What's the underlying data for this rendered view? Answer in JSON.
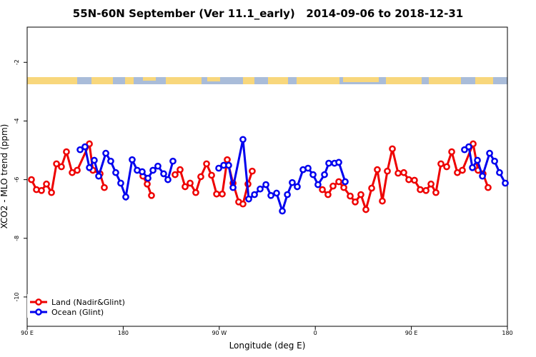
{
  "chart_data": {
    "type": "line",
    "title": "55N-60N September (Ver 11.1_early)   2014-09-06 to 2018-12-31",
    "xlabel": "Longitude (deg E)",
    "ylabel": "XCO2 - MLO trend (ppm)",
    "xlim": [
      90,
      540
    ],
    "ylim": [
      -11,
      -0.8
    ],
    "xticks": [
      {
        "value": 90,
        "label": "90 E"
      },
      {
        "value": 180,
        "label": "180"
      },
      {
        "value": 270,
        "label": "90 W"
      },
      {
        "value": 360,
        "label": "0"
      },
      {
        "value": 450,
        "label": "90 E"
      },
      {
        "value": 540,
        "label": "180"
      }
    ],
    "yticks": [
      -2,
      -4,
      -6,
      -8,
      -10
    ],
    "legend": "bottom-left",
    "series": [
      {
        "name": "Land (Nadir&Glint)",
        "color": "#ee0000",
        "x": [
          94,
          98.7,
          103.4,
          108.1,
          112.8,
          117.5,
          122.1,
          126.8,
          132.2,
          136.9,
          148.3,
          151.6,
          158.3,
          162.3,
          null,
          198.5,
          202.5,
          206.5,
          null,
          228.6,
          233.3,
          238,
          242.7,
          248,
          252.7,
          258.1,
          262.8,
          267.5,
          272.8,
          277.5,
          282.9,
          288.2,
          292.2,
          296.9,
          300.9,
          null,
          366.6,
          371.9,
          376.6,
          382,
          386.7,
          392.7,
          397.4,
          402.7,
          407.4,
          412.8,
          418.1,
          422.8,
          427.5,
          432.2,
          437.6,
          442.9,
          447.6,
          452.9,
          458.3,
          463.7,
          468.4,
          473,
          477.7,
          483.1,
          487.8,
          493.1,
          497.8,
          507.9,
          512.5,
          517.2,
          521.9
        ],
        "values": [
          -6.0,
          -6.34,
          -6.37,
          -6.15,
          -6.44,
          -5.46,
          -5.56,
          -5.05,
          -5.76,
          -5.68,
          -4.78,
          -5.68,
          -5.8,
          -6.27,
          null,
          -5.88,
          -6.15,
          -6.54,
          null,
          -5.83,
          -5.66,
          -6.24,
          -6.12,
          -6.44,
          -5.9,
          -5.46,
          -5.85,
          -6.49,
          -6.49,
          -5.32,
          -6.12,
          -6.76,
          -6.83,
          -6.15,
          -5.71,
          null,
          -6.34,
          -6.51,
          -6.22,
          -6.07,
          -6.27,
          -6.56,
          -6.76,
          -6.51,
          -7.02,
          -6.29,
          -5.66,
          -6.73,
          -5.71,
          -4.95,
          -5.78,
          -5.76,
          -6.0,
          -6.02,
          -6.34,
          -6.37,
          -6.15,
          -6.44,
          -5.46,
          -5.56,
          -5.05,
          -5.76,
          -5.68,
          -4.78,
          -5.68,
          -5.8,
          -6.27
        ]
      },
      {
        "name": "Ocean (Glint)",
        "color": "#0000ee",
        "x": [
          139.6,
          144.2,
          148.3,
          152.9,
          157,
          163.7,
          168.3,
          173,
          177.7,
          182.4,
          188.4,
          193.1,
          197.8,
          203.2,
          207.9,
          212.5,
          217.9,
          221.9,
          226.6,
          null,
          269.5,
          274.2,
          278.8,
          282.9,
          292.2,
          297.6,
          303,
          308.3,
          313.7,
          318.4,
          323.7,
          329.1,
          333.8,
          338.4,
          343.1,
          348.5,
          353.2,
          357.9,
          362.5,
          368.6,
          372.6,
          378,
          382,
          388,
          null,
          499.8,
          503.8,
          507.2,
          511.9,
          516.6,
          523.3,
          528,
          532.6,
          538
        ],
        "values": [
          -4.98,
          -4.88,
          -5.59,
          -5.34,
          -5.88,
          -5.1,
          -5.37,
          -5.76,
          -6.12,
          -6.59,
          -5.32,
          -5.68,
          -5.73,
          -5.95,
          -5.68,
          -5.54,
          -5.8,
          -6.0,
          -5.37,
          null,
          -5.61,
          -5.51,
          -5.51,
          -6.27,
          -4.63,
          -6.66,
          -6.51,
          -6.32,
          -6.17,
          -6.54,
          -6.46,
          -7.07,
          -6.51,
          -6.1,
          -6.24,
          -5.66,
          -5.61,
          -5.83,
          -6.17,
          -5.83,
          -5.44,
          -5.44,
          -5.41,
          -6.07,
          null,
          -4.98,
          -4.88,
          -5.59,
          -5.34,
          -5.88,
          -5.1,
          -5.37,
          -5.76,
          -6.12
        ]
      }
    ]
  }
}
